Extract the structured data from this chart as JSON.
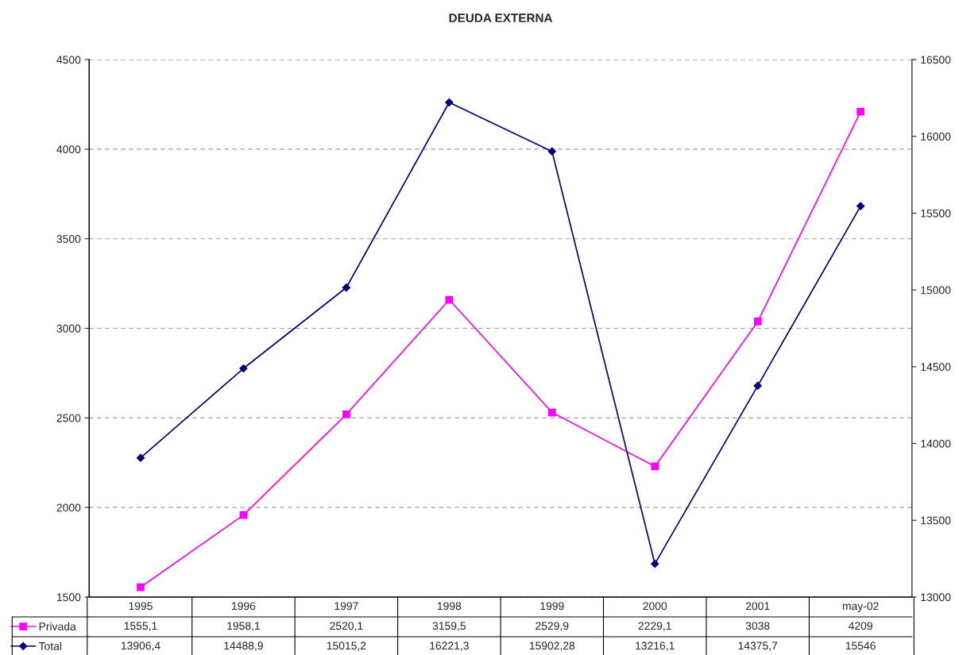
{
  "chart_data": {
    "type": "line",
    "title": "DEUDA EXTERNA",
    "categories": [
      "1995",
      "1996",
      "1997",
      "1998",
      "1999",
      "2000",
      "2001",
      "may-02"
    ],
    "series": [
      {
        "name": "Privada",
        "color": "#ff00ff",
        "marker": "square",
        "values": [
          1555.1,
          1958.1,
          2520.1,
          3159.5,
          2529.9,
          2229.1,
          3038,
          4209
        ],
        "value_labels": [
          "1555,1",
          "1958,1",
          "2520,1",
          "3159,5",
          "2529,9",
          "2229,1",
          "3038",
          "4209"
        ]
      },
      {
        "name": "Total",
        "color": "#000080",
        "marker": "diamond",
        "axis": "y2",
        "values": [
          13906.4,
          14488.9,
          15015.2,
          16221.3,
          15902.28,
          13216.1,
          14375.7,
          15546
        ],
        "value_labels": [
          "13906,4",
          "14488,9",
          "15015,2",
          "16221,3",
          "15902,28",
          "13216,1",
          "14375,7",
          "15546"
        ]
      }
    ],
    "ylim": [
      1500,
      4500
    ],
    "yticks": [
      1500,
      2000,
      2500,
      3000,
      3500,
      4000,
      4500
    ],
    "y2lim": [
      13000,
      16500
    ],
    "y2ticks": [
      13000,
      13500,
      14000,
      14500,
      15000,
      15500,
      16000,
      16500
    ],
    "grid": "y",
    "legend": "bottom left",
    "line_style": "solid"
  }
}
